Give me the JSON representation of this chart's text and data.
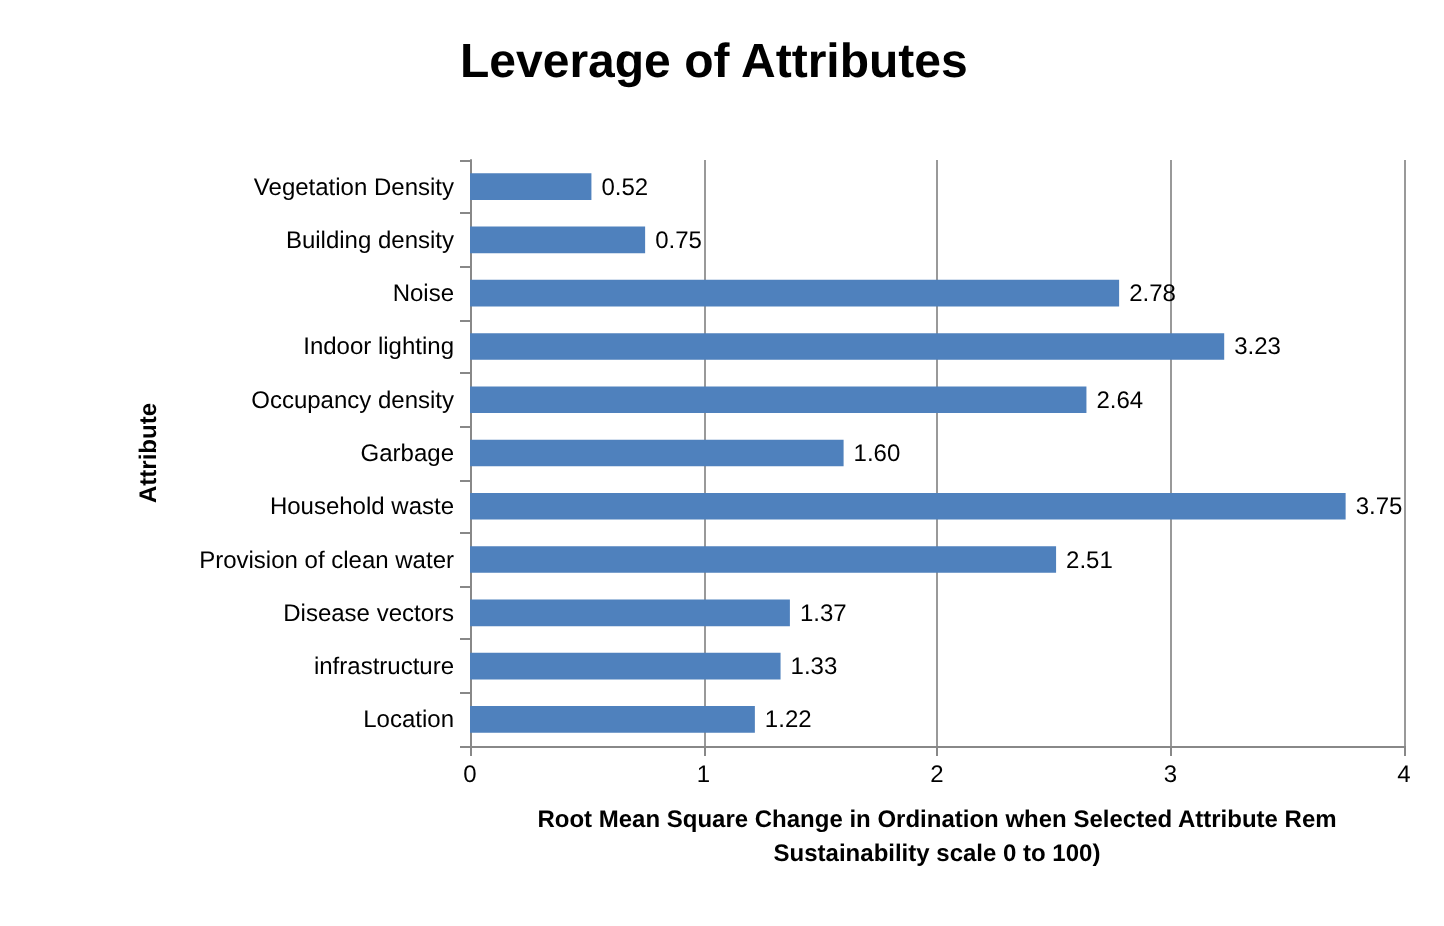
{
  "chart_data": {
    "type": "bar",
    "orientation": "horizontal",
    "title": "Leverage of Attributes",
    "xlabel": "Root Mean Square Change in Ordination when Selected Attribute Rem\nSustainability scale 0 to 100)",
    "ylabel": "Attribute",
    "categories": [
      "Vegetation Density",
      "Building density",
      "Noise",
      "Indoor lighting",
      "Occupancy density",
      "Garbage",
      "Household waste",
      "Provision of clean water",
      "Disease vectors",
      "infrastructure",
      "Location"
    ],
    "values": [
      0.52,
      0.75,
      2.78,
      3.23,
      2.64,
      1.6,
      3.75,
      2.51,
      1.37,
      1.33,
      1.22
    ],
    "value_labels": [
      "0.52",
      "0.75",
      "2.78",
      "3.23",
      "2.64",
      "1.60",
      "3.75",
      "2.51",
      "1.37",
      "1.33",
      "1.22"
    ],
    "color": "#4f81bd",
    "xlim": [
      0,
      4
    ],
    "xticks": [
      0,
      1,
      2,
      3,
      4
    ],
    "grid": "x"
  }
}
